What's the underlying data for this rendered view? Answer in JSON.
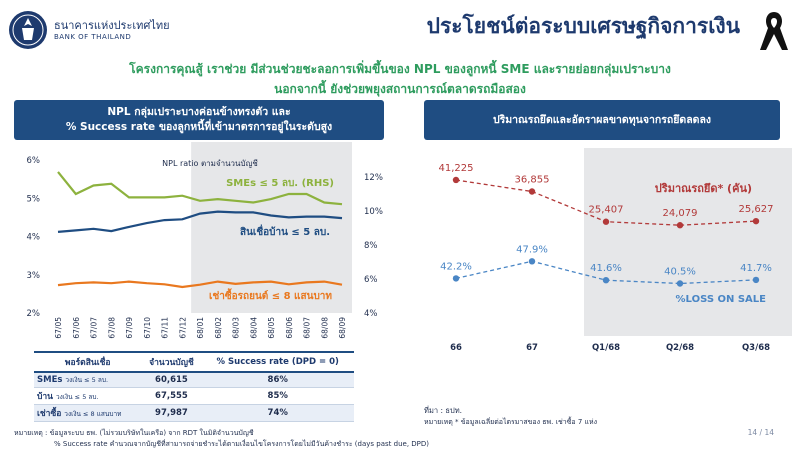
{
  "header": {
    "org_name_th": "ธนาคารแห่งประเทศไทย",
    "org_name_en": "BANK OF THAILAND",
    "page_title": "ประโยชน์ต่อระบบเศรษฐกิจการเงิน",
    "subtitle_line1": "โครงการคุณสู้ เราช่วย มีส่วนช่วยชะลอการเพิ่มขึ้นของ NPL ของลูกหนี้ SME และรายย่อยกลุ่มเปราะบาง",
    "subtitle_line2": "นอกจากนี้ ยังช่วยพยุงสถานการณ์ตลาดรถมือสอง",
    "logo_icon": "bot-seal-icon",
    "ribbon_icon": "mourning-ribbon-icon"
  },
  "left_panel": {
    "title_line1": "NPL กลุ่มเปราะบางค่อนข้างทรงตัว และ",
    "title_line2": "% Success rate ของลูกหนี้ที่เข้ามาตรการอยู่ในระดับสูง"
  },
  "right_panel": {
    "title": "ปริมาณรถยึดและอัตราผลขาดทุนจากรถยึดลดลง"
  },
  "chart_data": [
    {
      "type": "line",
      "title": "NPL ratio ตามจำนวนบัญชี",
      "categories": [
        "67/05",
        "67/06",
        "67/07",
        "67/08",
        "67/09",
        "67/10",
        "67/11",
        "67/12",
        "68/01",
        "68/02",
        "68/03",
        "68/04",
        "68/05",
        "68/06",
        "68/07",
        "68/08",
        "68/09"
      ],
      "y_left": {
        "ticks": [
          "2%",
          "3%",
          "4%",
          "5%",
          "6%"
        ],
        "range": [
          2,
          6
        ]
      },
      "y_right": {
        "ticks": [
          "4%",
          "6%",
          "8%",
          "10%",
          "12%"
        ],
        "range": [
          4,
          13
        ]
      },
      "series": [
        {
          "name": "SMEs ≤ 5 ลบ. (RHS)",
          "axis": "right",
          "color": "#8db23e",
          "values": [
            12.3,
            11.0,
            11.5,
            11.6,
            10.8,
            10.8,
            10.8,
            10.9,
            10.6,
            10.7,
            10.6,
            10.5,
            10.7,
            11.0,
            11.0,
            10.5,
            10.4
          ]
        },
        {
          "name": "สินเชื่อบ้าน ≤ 5 ลบ.",
          "axis": "left",
          "color": "#1f4d82",
          "values": [
            4.12,
            4.16,
            4.2,
            4.14,
            4.25,
            4.35,
            4.43,
            4.45,
            4.6,
            4.65,
            4.63,
            4.63,
            4.55,
            4.5,
            4.52,
            4.52,
            4.48
          ]
        },
        {
          "name": "เช่าซื้อรถยนต์ ≤ 8 แสนบาท",
          "axis": "left",
          "color": "#e9781f",
          "values": [
            2.73,
            2.78,
            2.8,
            2.78,
            2.82,
            2.78,
            2.75,
            2.68,
            2.74,
            2.82,
            2.76,
            2.8,
            2.82,
            2.75,
            2.8,
            2.82,
            2.74
          ]
        }
      ],
      "shaded_from": "68/01"
    },
    {
      "type": "line",
      "categories": [
        "66",
        "67",
        "Q1/68",
        "Q2/68",
        "Q3/68"
      ],
      "shaded_from": "Q1/68",
      "series": [
        {
          "name": "ปริมาณรถยึด* (คัน)",
          "color": "#b23a3a",
          "values": [
            41225,
            36855,
            25407,
            24079,
            25627
          ],
          "labels": [
            "41,225",
            "36,855",
            "25,407",
            "24,079",
            "25,627"
          ]
        },
        {
          "name": "%LOSS ON SALE",
          "color": "#4a86c5",
          "values": [
            42.2,
            47.9,
            41.6,
            40.5,
            41.7
          ],
          "labels": [
            "42.2%",
            "47.9%",
            "41.6%",
            "40.5%",
            "41.7%"
          ]
        }
      ]
    },
    {
      "type": "table",
      "columns": [
        "พอร์ตสินเชื่อ",
        "จำนวนบัญชี",
        "% Success rate (DPD = 0)"
      ],
      "rows": [
        {
          "main": "SMEs",
          "qualifier": "วงเงิน ≤ 5 ลบ.",
          "accounts": "60,615",
          "rate": "86%"
        },
        {
          "main": "บ้าน",
          "qualifier": "วงเงิน ≤ 5 ลบ.",
          "accounts": "67,555",
          "rate": "85%"
        },
        {
          "main": "เช่าซื้อ",
          "qualifier": "วงเงิน ≤ 8 แสนบาท",
          "accounts": "97,987",
          "rate": "74%"
        }
      ]
    }
  ],
  "notes": {
    "source_right": "ที่มา : ธปท.",
    "note_right": "หมายเหตุ * ข้อมูลเฉลี่ยต่อไตรมาสของ ธพ. เช่าซื้อ 7 แห่ง",
    "footer_line1": "หมายเหตุ : ข้อมูลระบบ ธพ. (ไม่รวมบริษัทในเครือ) จาก RDT ในมิติจำนวนบัญชี",
    "footer_line2": "% Success rate คำนวณจากบัญชีที่สามารถจ่ายชำระได้ตามเงื่อนไขโครงการโดยไม่มีวันค้างชำระ (days past due, DPD)",
    "page_number": "14 / 14"
  }
}
